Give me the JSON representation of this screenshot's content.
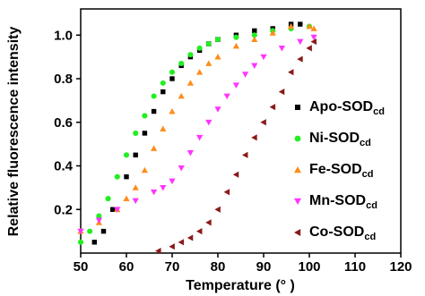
{
  "chart_data": {
    "type": "scatter",
    "xlabel": "Temperature (° )",
    "ylabel": "Relative fluorescence intensity",
    "xlim": [
      50,
      120
    ],
    "ylim": [
      0,
      1.12
    ],
    "xticks": [
      50,
      60,
      70,
      80,
      90,
      100,
      110,
      120
    ],
    "yticks": [
      0.2,
      0.4,
      0.6,
      0.8,
      {
        "value": 1,
        "label": "1.0"
      }
    ],
    "series": [
      {
        "name": "Apo-SOD",
        "name_subscript": "cd",
        "color": "#000000",
        "marker": "square",
        "x": [
          53,
          55,
          57,
          60,
          62,
          64,
          66,
          68,
          70,
          72,
          74,
          76,
          78,
          80,
          84,
          88,
          92,
          96,
          98
        ],
        "values": [
          0.05,
          0.1,
          0.2,
          0.35,
          0.45,
          0.55,
          0.65,
          0.74,
          0.8,
          0.86,
          0.9,
          0.93,
          0.96,
          0.98,
          1.0,
          1.02,
          1.03,
          1.05,
          1.05
        ]
      },
      {
        "name": "Ni-SOD",
        "name_subscript": "cd",
        "color": "#22ee22",
        "marker": "circle",
        "x": [
          50,
          52,
          54,
          56,
          58,
          60,
          62,
          64,
          66,
          68,
          70,
          72,
          74,
          76,
          78,
          80,
          84,
          88,
          92,
          96,
          100
        ],
        "values": [
          0.05,
          0.1,
          0.17,
          0.25,
          0.35,
          0.45,
          0.55,
          0.63,
          0.72,
          0.78,
          0.83,
          0.87,
          0.91,
          0.94,
          0.96,
          0.98,
          0.99,
          1.0,
          1.02,
          1.03,
          1.04
        ]
      },
      {
        "name": "Fe-SOD",
        "name_subscript": "cd",
        "color": "#ff8c1a",
        "marker": "triangle-up",
        "x": [
          50,
          54,
          58,
          60,
          62,
          64,
          66,
          68,
          70,
          72,
          74,
          76,
          78,
          80,
          84,
          88,
          92,
          96,
          100,
          101
        ],
        "values": [
          0.1,
          0.14,
          0.2,
          0.25,
          0.3,
          0.38,
          0.48,
          0.57,
          0.65,
          0.72,
          0.78,
          0.83,
          0.87,
          0.9,
          0.95,
          0.98,
          1.01,
          1.04,
          1.04,
          1.03
        ]
      },
      {
        "name": "Mn-SOD",
        "name_subscript": "cd",
        "color": "#ff33ff",
        "marker": "triangle-down",
        "x": [
          50,
          54,
          58,
          62,
          66,
          68,
          70,
          72,
          74,
          76,
          78,
          80,
          82,
          84,
          86,
          88,
          90,
          94,
          98,
          101
        ],
        "values": [
          0.1,
          0.15,
          0.2,
          0.24,
          0.28,
          0.3,
          0.33,
          0.39,
          0.46,
          0.53,
          0.6,
          0.66,
          0.72,
          0.77,
          0.82,
          0.86,
          0.9,
          0.94,
          0.97,
          0.99
        ]
      },
      {
        "name": "Co-SOD",
        "name_subscript": "cd",
        "color": "#8b1a1a",
        "marker": "triangle-left",
        "x": [
          67,
          70,
          72,
          74,
          76,
          78,
          80,
          82,
          84,
          86,
          88,
          90,
          92,
          94,
          96,
          98,
          100,
          101
        ],
        "values": [
          0.01,
          0.03,
          0.05,
          0.07,
          0.1,
          0.14,
          0.2,
          0.28,
          0.36,
          0.45,
          0.53,
          0.6,
          0.67,
          0.74,
          0.83,
          0.89,
          0.94,
          0.97
        ]
      }
    ]
  }
}
